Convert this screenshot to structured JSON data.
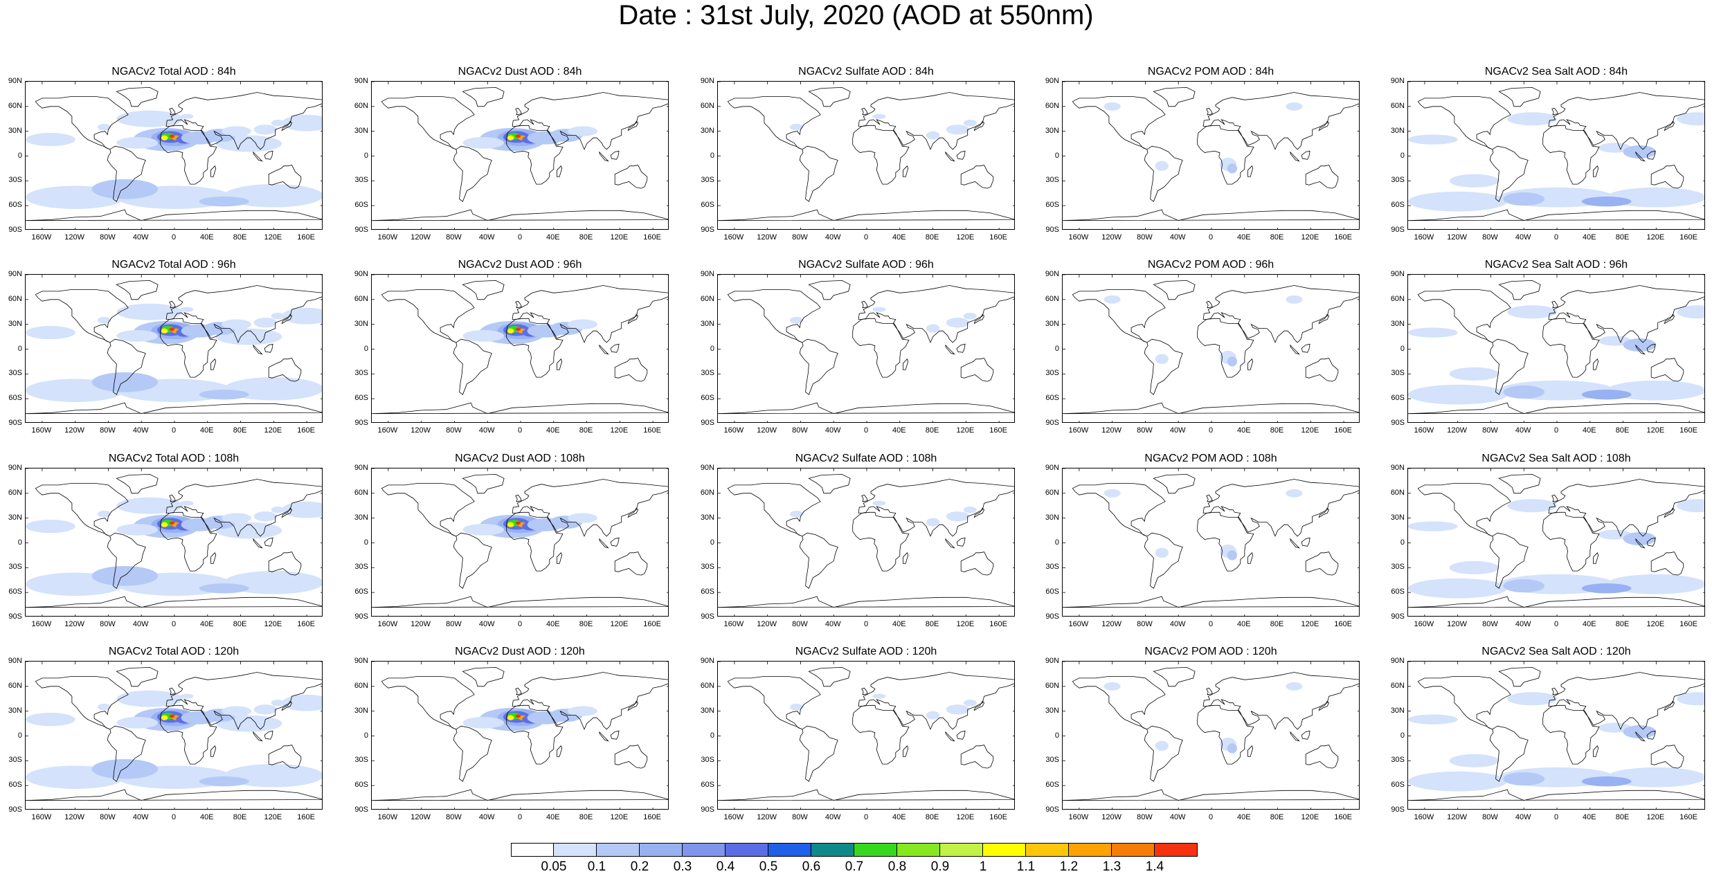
{
  "page_title": "Date : 31st July, 2020 (AOD at 550nm)",
  "lat_ticks": [
    "90N",
    "60N",
    "30N",
    "0",
    "30S",
    "60S",
    "90S"
  ],
  "lon_ticks": [
    "160W",
    "120W",
    "80W",
    "40W",
    "0",
    "40E",
    "80E",
    "120E",
    "160E"
  ],
  "lon_tick_values": [
    -160,
    -120,
    -80,
    -40,
    0,
    40,
    80,
    120,
    160
  ],
  "lat_tick_values": [
    90,
    60,
    30,
    0,
    -30,
    -60,
    -90
  ],
  "panels": [
    [
      {
        "title": "NGACv2 Total AOD : 84h",
        "species": "total"
      },
      {
        "title": "NGACv2 Dust AOD : 84h",
        "species": "dust"
      },
      {
        "title": "NGACv2 Sulfate AOD : 84h",
        "species": "sulfate"
      },
      {
        "title": "NGACv2 POM AOD : 84h",
        "species": "pom"
      },
      {
        "title": "NGACv2 Sea Salt AOD : 84h",
        "species": "seasalt"
      }
    ],
    [
      {
        "title": "NGACv2 Total AOD : 96h",
        "species": "total"
      },
      {
        "title": "NGACv2 Dust AOD : 96h",
        "species": "dust"
      },
      {
        "title": "NGACv2 Sulfate AOD : 96h",
        "species": "sulfate"
      },
      {
        "title": "NGACv2 POM AOD : 96h",
        "species": "pom"
      },
      {
        "title": "NGACv2 Sea Salt AOD : 96h",
        "species": "seasalt"
      }
    ],
    [
      {
        "title": "NGACv2 Total AOD : 108h",
        "species": "total"
      },
      {
        "title": "NGACv2 Dust AOD : 108h",
        "species": "dust"
      },
      {
        "title": "NGACv2 Sulfate AOD : 108h",
        "species": "sulfate"
      },
      {
        "title": "NGACv2 POM AOD : 108h",
        "species": "pom"
      },
      {
        "title": "NGACv2 Sea Salt AOD : 108h",
        "species": "seasalt"
      }
    ],
    [
      {
        "title": "NGACv2 Total AOD : 120h",
        "species": "total"
      },
      {
        "title": "NGACv2 Dust AOD : 120h",
        "species": "dust"
      },
      {
        "title": "NGACv2 Sulfate AOD : 120h",
        "species": "sulfate"
      },
      {
        "title": "NGACv2 POM AOD : 120h",
        "species": "pom"
      },
      {
        "title": "NGACv2 Sea Salt  AOD : 120h",
        "species": "seasalt"
      }
    ]
  ],
  "colorbar": {
    "labels": [
      "0.05",
      "0.1",
      "0.2",
      "0.3",
      "0.4",
      "0.5",
      "0.6",
      "0.7",
      "0.8",
      "0.9",
      "1",
      "1.1",
      "1.2",
      "1.3",
      "1.4"
    ],
    "colors": [
      "#ffffff",
      "#d4e2fb",
      "#b4c9f6",
      "#98b1f2",
      "#7f95ee",
      "#5c6ee6",
      "#1f5fea",
      "#0f8a8a",
      "#36d81d",
      "#86e81e",
      "#c2f245",
      "#ffff00",
      "#ffc60a",
      "#ffa203",
      "#f87d06",
      "#f63211"
    ]
  }
}
